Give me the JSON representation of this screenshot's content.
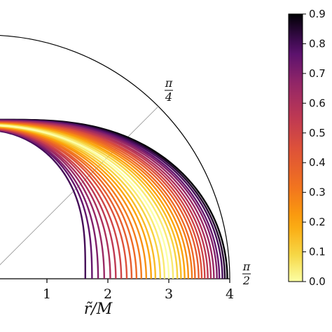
{
  "chart_data": {
    "type": "line",
    "coordinate_system": "polar-quadrant",
    "xlabel": "r̃/M",
    "x_ticks": [
      "1",
      "2",
      "3",
      "4"
    ],
    "x_tick_values": [
      1,
      2,
      3,
      4
    ],
    "r_outer": 4,
    "angle_labels": [
      {
        "value_deg": 45,
        "numerator": "π",
        "denominator": "4"
      },
      {
        "value_deg": 90,
        "numerator": "π",
        "denominator": "2"
      }
    ],
    "grid": true,
    "colorbar": {
      "ticks": [
        "0.0",
        "0.1",
        "0.2",
        "0.3",
        "0.4",
        "0.5",
        "0.6",
        "0.7",
        "0.8",
        "0.9"
      ],
      "tick_values": [
        0.0,
        0.1,
        0.2,
        0.3,
        0.4,
        0.5,
        0.6,
        0.7,
        0.8,
        0.9
      ],
      "range": [
        0.0,
        0.9
      ],
      "colormap": "inferno_r"
    },
    "series": [
      {
        "param": 0.0,
        "r_equator": 3.0,
        "r_pole": 2.52
      },
      {
        "param": 0.05,
        "r_equator": 3.07,
        "r_pole": 2.53
      },
      {
        "param": 0.1,
        "r_equator": 3.14,
        "r_pole": 2.53
      },
      {
        "param": 0.15,
        "r_equator": 3.2,
        "r_pole": 2.54
      },
      {
        "param": 0.2,
        "r_equator": 3.26,
        "r_pole": 2.54
      },
      {
        "param": 0.25,
        "r_equator": 3.32,
        "r_pole": 2.55
      },
      {
        "param": 0.3,
        "r_equator": 3.38,
        "r_pole": 2.55
      },
      {
        "param": 0.35,
        "r_equator": 3.43,
        "r_pole": 2.56
      },
      {
        "param": 0.4,
        "r_equator": 3.49,
        "r_pole": 2.56
      },
      {
        "param": 0.45,
        "r_equator": 3.54,
        "r_pole": 2.57
      },
      {
        "param": 0.5,
        "r_equator": 3.59,
        "r_pole": 2.57
      },
      {
        "param": 0.55,
        "r_equator": 3.64,
        "r_pole": 2.58
      },
      {
        "param": 0.6,
        "r_equator": 3.69,
        "r_pole": 2.58
      },
      {
        "param": 0.65,
        "r_equator": 3.74,
        "r_pole": 2.59
      },
      {
        "param": 0.7,
        "r_equator": 3.79,
        "r_pole": 2.59
      },
      {
        "param": 0.75,
        "r_equator": 3.83,
        "r_pole": 2.6
      },
      {
        "param": 0.8,
        "r_equator": 3.88,
        "r_pole": 2.6
      },
      {
        "param": 0.85,
        "r_equator": 3.92,
        "r_pole": 2.61
      },
      {
        "param": 0.9,
        "r_equator": 3.96,
        "r_pole": 2.61
      },
      {
        "param": 0.05,
        "r_equator": 2.93,
        "r_pole": 2.52
      },
      {
        "param": 0.1,
        "r_equator": 2.86,
        "r_pole": 2.51
      },
      {
        "param": 0.15,
        "r_equator": 2.78,
        "r_pole": 2.51
      },
      {
        "param": 0.2,
        "r_equator": 2.71,
        "r_pole": 2.5
      },
      {
        "param": 0.25,
        "r_equator": 2.63,
        "r_pole": 2.5
      },
      {
        "param": 0.3,
        "r_equator": 2.55,
        "r_pole": 2.49
      },
      {
        "param": 0.35,
        "r_equator": 2.47,
        "r_pole": 2.49
      },
      {
        "param": 0.4,
        "r_equator": 2.39,
        "r_pole": 2.48
      },
      {
        "param": 0.45,
        "r_equator": 2.31,
        "r_pole": 2.48
      },
      {
        "param": 0.5,
        "r_equator": 2.22,
        "r_pole": 2.47
      },
      {
        "param": 0.55,
        "r_equator": 2.13,
        "r_pole": 2.47
      },
      {
        "param": 0.6,
        "r_equator": 2.04,
        "r_pole": 2.46
      },
      {
        "param": 0.65,
        "r_equator": 1.94,
        "r_pole": 2.46
      },
      {
        "param": 0.7,
        "r_equator": 1.84,
        "r_pole": 2.45
      },
      {
        "param": 0.75,
        "r_equator": 1.74,
        "r_pole": 2.45
      },
      {
        "param": 0.8,
        "r_equator": 1.63,
        "r_pole": 2.44
      }
    ]
  }
}
